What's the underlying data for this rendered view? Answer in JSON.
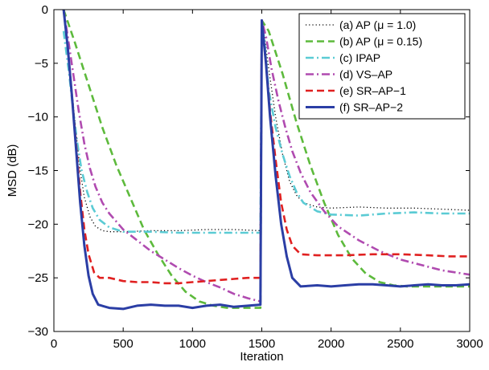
{
  "chart_data": {
    "type": "line",
    "title": "",
    "xlabel": "Iteration",
    "ylabel": "MSD (dB)",
    "xlim": [
      0,
      3000
    ],
    "ylim": [
      -30,
      0
    ],
    "xticks": [
      "0",
      "500",
      "1000",
      "1500",
      "2000",
      "2500",
      "3000"
    ],
    "yticks": [
      "0",
      "−5",
      "−10",
      "−15",
      "−20",
      "−25",
      "−30"
    ],
    "grid": false,
    "legend_position": "top-right",
    "series": [
      {
        "name": "(a) AP (μ = 1.0)",
        "color": "#000000",
        "style": "dotted",
        "points": [
          [
            70,
            0
          ],
          [
            100,
            -3.5
          ],
          [
            130,
            -7.5
          ],
          [
            160,
            -11.5
          ],
          [
            190,
            -15
          ],
          [
            220,
            -17.5
          ],
          [
            260,
            -19.3
          ],
          [
            300,
            -20.2
          ],
          [
            350,
            -20.6
          ],
          [
            400,
            -20.7
          ],
          [
            500,
            -20.7
          ],
          [
            700,
            -20.6
          ],
          [
            900,
            -20.6
          ],
          [
            1100,
            -20.5
          ],
          [
            1300,
            -20.5
          ],
          [
            1490,
            -20.6
          ],
          [
            1500,
            -1
          ],
          [
            1520,
            -2.5
          ],
          [
            1550,
            -5.5
          ],
          [
            1600,
            -10
          ],
          [
            1650,
            -13.5
          ],
          [
            1700,
            -16
          ],
          [
            1750,
            -17.3
          ],
          [
            1800,
            -18
          ],
          [
            1900,
            -18.4
          ],
          [
            2000,
            -18.5
          ],
          [
            2200,
            -18.4
          ],
          [
            2400,
            -18.5
          ],
          [
            2600,
            -18.5
          ],
          [
            2800,
            -18.6
          ],
          [
            3000,
            -18.7
          ]
        ]
      },
      {
        "name": "(b) AP (μ = 0.15)",
        "color": "#5dba3c",
        "style": "dashed",
        "points": [
          [
            70,
            0
          ],
          [
            150,
            -3
          ],
          [
            250,
            -7
          ],
          [
            350,
            -11
          ],
          [
            450,
            -14.5
          ],
          [
            550,
            -17.5
          ],
          [
            650,
            -20.5
          ],
          [
            750,
            -22.8
          ],
          [
            850,
            -24.8
          ],
          [
            950,
            -26.3
          ],
          [
            1050,
            -27.2
          ],
          [
            1150,
            -27.6
          ],
          [
            1250,
            -27.8
          ],
          [
            1350,
            -27.8
          ],
          [
            1490,
            -27.8
          ],
          [
            1500,
            -1
          ],
          [
            1550,
            -2
          ],
          [
            1650,
            -6
          ],
          [
            1750,
            -10.5
          ],
          [
            1850,
            -14.5
          ],
          [
            1950,
            -18
          ],
          [
            2050,
            -21
          ],
          [
            2150,
            -23.2
          ],
          [
            2250,
            -24.6
          ],
          [
            2350,
            -25.4
          ],
          [
            2450,
            -25.7
          ],
          [
            2550,
            -25.8
          ],
          [
            2700,
            -25.8
          ],
          [
            2850,
            -25.8
          ],
          [
            3000,
            -25.8
          ]
        ]
      },
      {
        "name": "(c) IPAP",
        "color": "#5bcbd4",
        "style": "dashdot",
        "points": [
          [
            70,
            -2
          ],
          [
            90,
            -4
          ],
          [
            110,
            -6
          ],
          [
            140,
            -9.5
          ],
          [
            170,
            -12.5
          ],
          [
            200,
            -15
          ],
          [
            240,
            -17
          ],
          [
            280,
            -18.5
          ],
          [
            330,
            -19.6
          ],
          [
            400,
            -20.3
          ],
          [
            500,
            -20.7
          ],
          [
            700,
            -20.7
          ],
          [
            900,
            -20.8
          ],
          [
            1100,
            -20.8
          ],
          [
            1300,
            -20.8
          ],
          [
            1490,
            -20.8
          ],
          [
            1500,
            -1
          ],
          [
            1520,
            -3
          ],
          [
            1550,
            -7.5
          ],
          [
            1600,
            -11
          ],
          [
            1650,
            -13.5
          ],
          [
            1700,
            -15.5
          ],
          [
            1750,
            -17
          ],
          [
            1800,
            -18
          ],
          [
            1900,
            -18.8
          ],
          [
            2000,
            -19.1
          ],
          [
            2200,
            -19.2
          ],
          [
            2400,
            -19
          ],
          [
            2600,
            -18.9
          ],
          [
            2800,
            -19
          ],
          [
            3000,
            -19
          ]
        ]
      },
      {
        "name": "(d) VS–AP",
        "color": "#b04bb0",
        "style": "dashdot",
        "points": [
          [
            70,
            0
          ],
          [
            100,
            -2.5
          ],
          [
            140,
            -6
          ],
          [
            180,
            -9.5
          ],
          [
            220,
            -12.5
          ],
          [
            260,
            -14.8
          ],
          [
            300,
            -16.5
          ],
          [
            350,
            -18
          ],
          [
            400,
            -19
          ],
          [
            500,
            -20.5
          ],
          [
            600,
            -21.5
          ],
          [
            700,
            -22.5
          ],
          [
            800,
            -23.3
          ],
          [
            900,
            -24.1
          ],
          [
            1000,
            -24.8
          ],
          [
            1100,
            -25.4
          ],
          [
            1200,
            -25.9
          ],
          [
            1300,
            -26.5
          ],
          [
            1400,
            -26.9
          ],
          [
            1490,
            -27.2
          ],
          [
            1500,
            -1
          ],
          [
            1530,
            -2.5
          ],
          [
            1570,
            -5.5
          ],
          [
            1620,
            -8.5
          ],
          [
            1670,
            -11
          ],
          [
            1720,
            -13.2
          ],
          [
            1780,
            -15.2
          ],
          [
            1850,
            -17
          ],
          [
            1950,
            -18.8
          ],
          [
            2050,
            -20.2
          ],
          [
            2200,
            -21.5
          ],
          [
            2350,
            -22.5
          ],
          [
            2500,
            -23.3
          ],
          [
            2650,
            -23.8
          ],
          [
            2800,
            -24.3
          ],
          [
            3000,
            -24.7
          ]
        ]
      },
      {
        "name": "(e) SR–AP−1",
        "color": "#e02020",
        "style": "dashed",
        "points": [
          [
            70,
            0
          ],
          [
            100,
            -3.5
          ],
          [
            130,
            -8
          ],
          [
            160,
            -12.5
          ],
          [
            190,
            -17
          ],
          [
            220,
            -20.5
          ],
          [
            250,
            -22.8
          ],
          [
            290,
            -24.5
          ],
          [
            330,
            -25
          ],
          [
            400,
            -25
          ],
          [
            500,
            -25.3
          ],
          [
            600,
            -25.4
          ],
          [
            700,
            -25.4
          ],
          [
            800,
            -25.5
          ],
          [
            900,
            -25.5
          ],
          [
            1000,
            -25.4
          ],
          [
            1100,
            -25.3
          ],
          [
            1200,
            -25.2
          ],
          [
            1300,
            -25.1
          ],
          [
            1400,
            -25
          ],
          [
            1490,
            -25
          ],
          [
            1500,
            -1
          ],
          [
            1530,
            -5
          ],
          [
            1560,
            -9.5
          ],
          [
            1600,
            -14
          ],
          [
            1640,
            -18
          ],
          [
            1680,
            -20.5
          ],
          [
            1720,
            -22
          ],
          [
            1780,
            -22.8
          ],
          [
            1900,
            -22.9
          ],
          [
            2100,
            -22.9
          ],
          [
            2300,
            -22.8
          ],
          [
            2500,
            -22.8
          ],
          [
            2700,
            -22.9
          ],
          [
            2850,
            -23
          ],
          [
            3000,
            -23
          ]
        ]
      },
      {
        "name": "(f) SR–AP−2",
        "color": "#2b3ea5",
        "style": "solid",
        "points": [
          [
            70,
            0
          ],
          [
            100,
            -3.5
          ],
          [
            130,
            -8
          ],
          [
            160,
            -13
          ],
          [
            190,
            -18
          ],
          [
            220,
            -22
          ],
          [
            250,
            -24.8
          ],
          [
            280,
            -26.5
          ],
          [
            320,
            -27.5
          ],
          [
            400,
            -27.8
          ],
          [
            500,
            -27.9
          ],
          [
            600,
            -27.6
          ],
          [
            700,
            -27.5
          ],
          [
            800,
            -27.6
          ],
          [
            900,
            -27.6
          ],
          [
            1000,
            -27.8
          ],
          [
            1100,
            -27.6
          ],
          [
            1200,
            -27.5
          ],
          [
            1300,
            -27.7
          ],
          [
            1400,
            -27.6
          ],
          [
            1490,
            -27.5
          ],
          [
            1500,
            -1
          ],
          [
            1530,
            -5
          ],
          [
            1560,
            -10
          ],
          [
            1600,
            -15.5
          ],
          [
            1640,
            -20
          ],
          [
            1680,
            -23
          ],
          [
            1720,
            -25
          ],
          [
            1780,
            -25.8
          ],
          [
            1900,
            -25.7
          ],
          [
            2000,
            -25.8
          ],
          [
            2100,
            -25.7
          ],
          [
            2200,
            -25.6
          ],
          [
            2300,
            -25.6
          ],
          [
            2400,
            -25.7
          ],
          [
            2500,
            -25.8
          ],
          [
            2600,
            -25.7
          ],
          [
            2700,
            -25.6
          ],
          [
            2800,
            -25.7
          ],
          [
            2900,
            -25.7
          ],
          [
            3000,
            -25.6
          ]
        ]
      }
    ]
  }
}
